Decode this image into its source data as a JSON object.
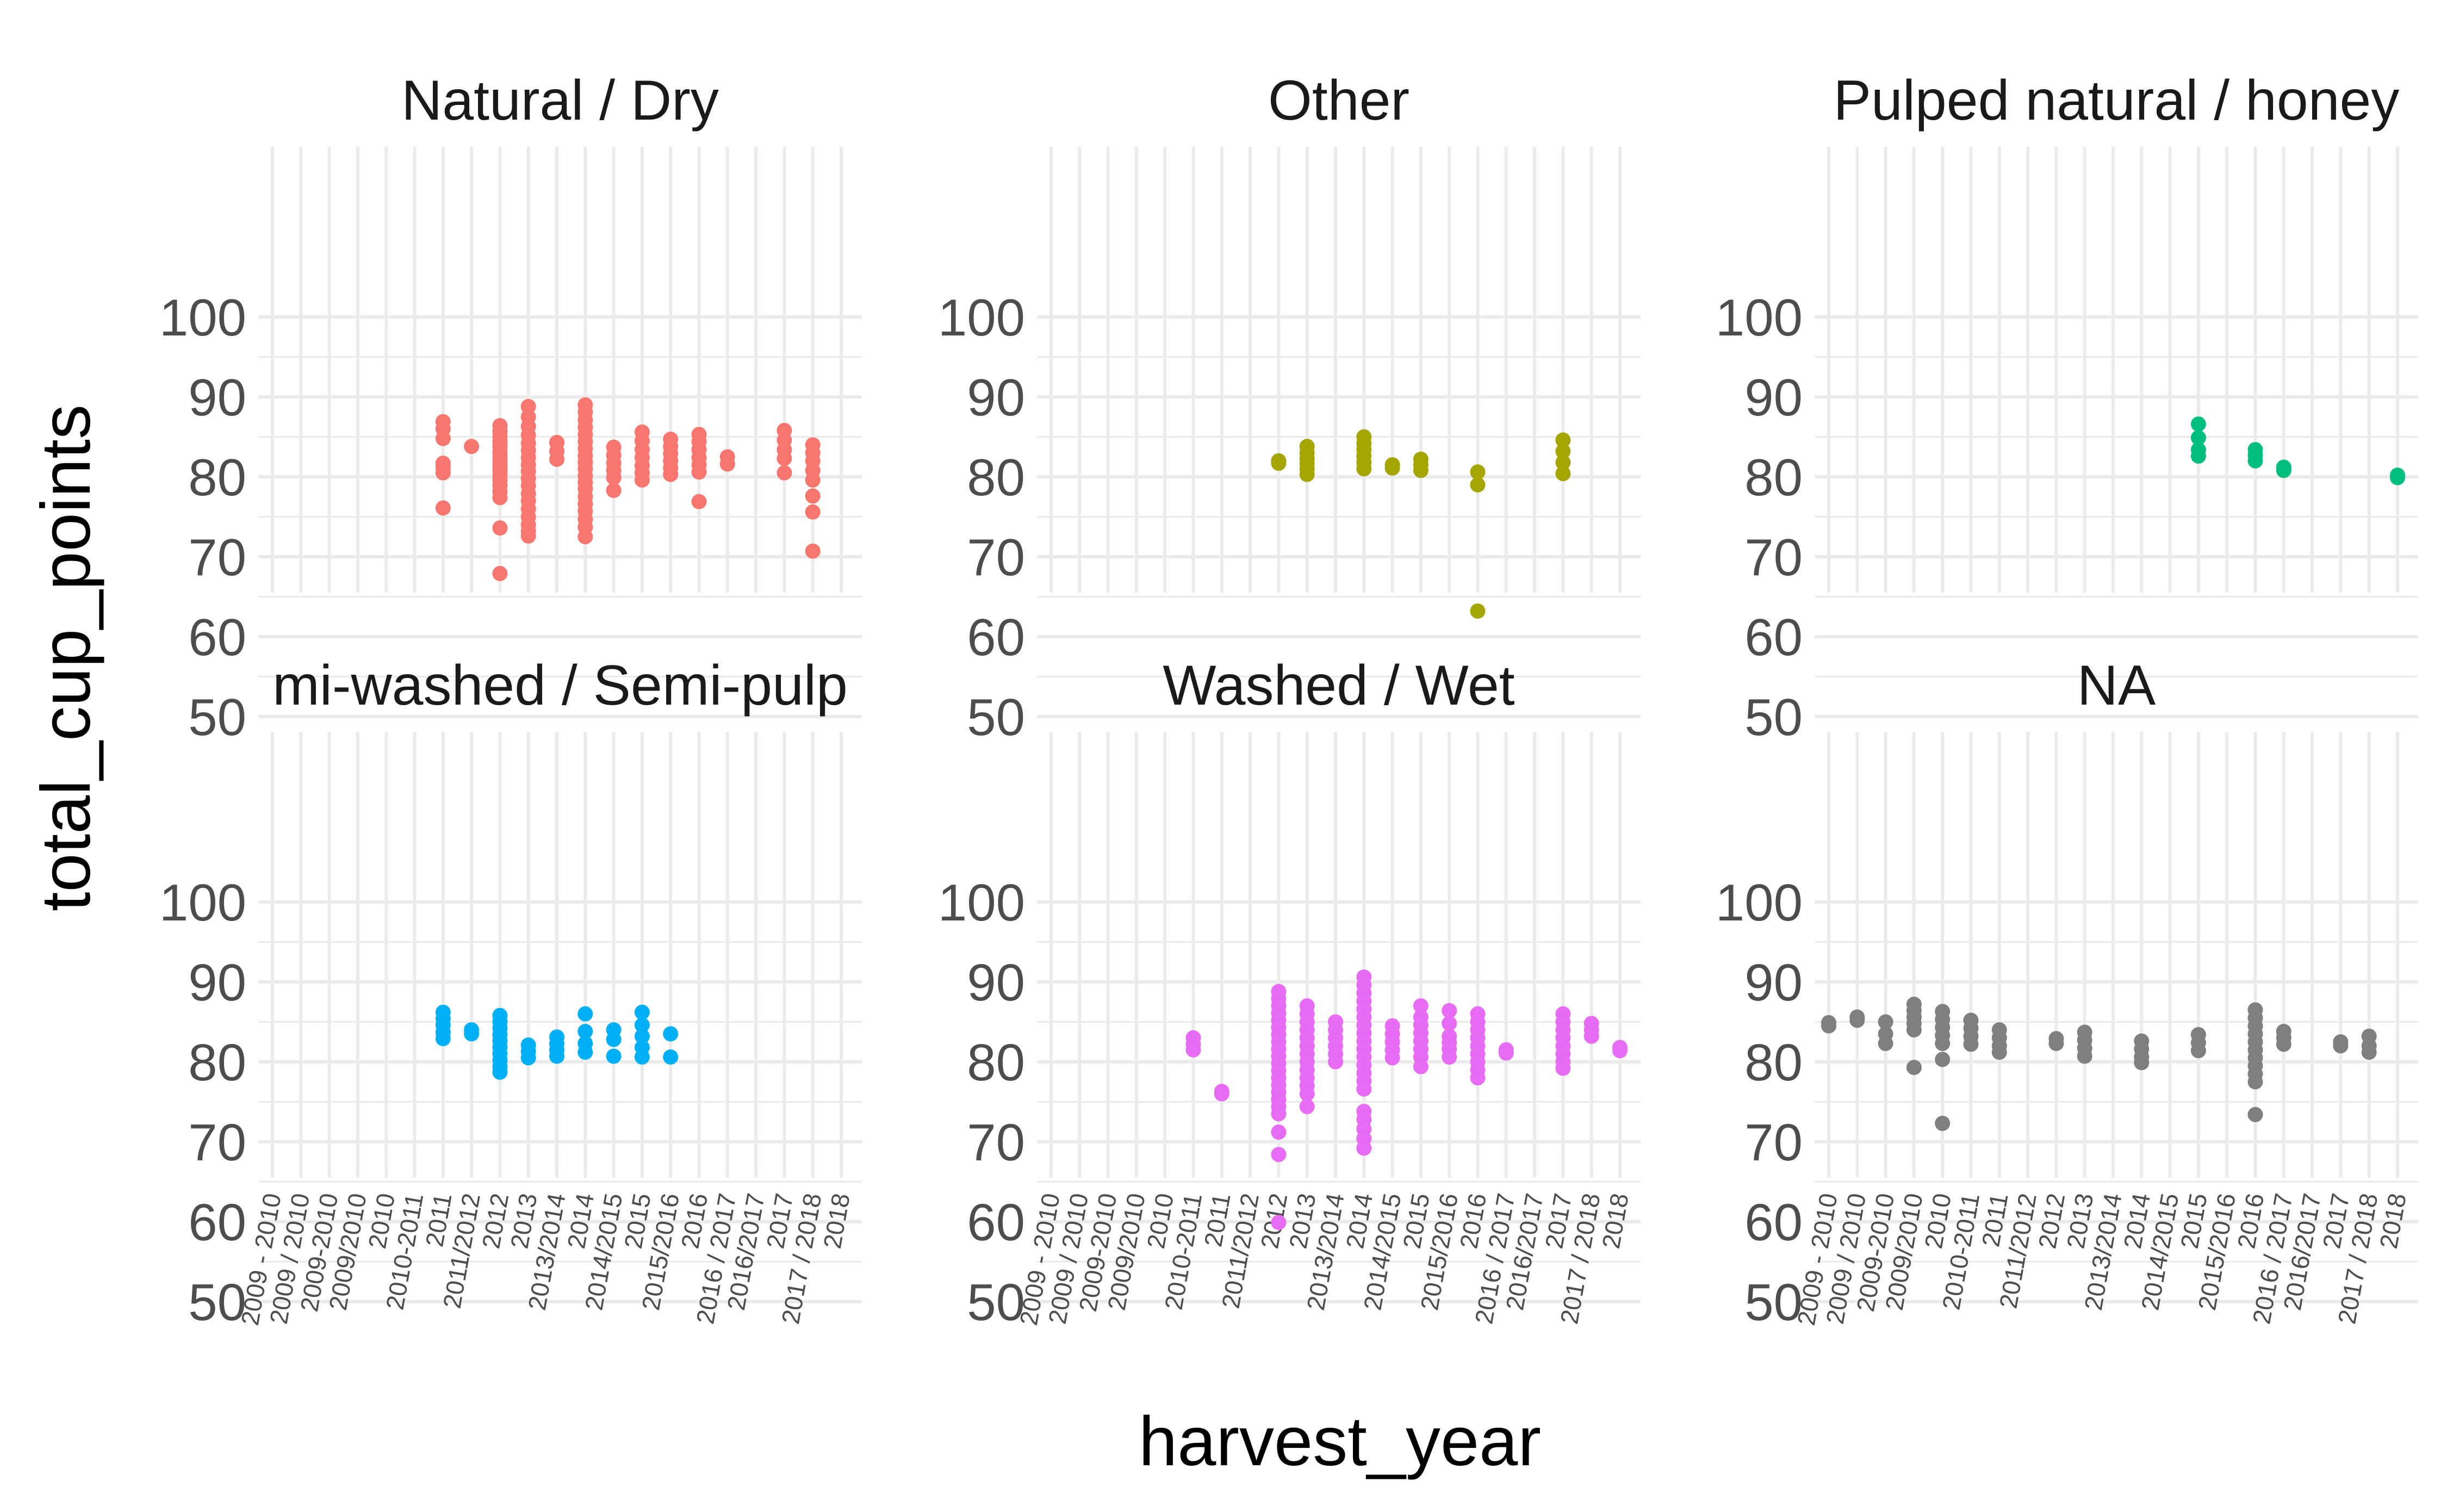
{
  "chart_data": {
    "type": "scatter",
    "xlabel": "harvest_year",
    "ylabel": "total_cup_points",
    "ylim": [
      50,
      100
    ],
    "yticks": [
      50,
      60,
      70,
      80,
      90,
      100
    ],
    "grid": true,
    "legend": "none",
    "x_categories": [
      "2009 - 2010",
      "2009 / 2010",
      "2009-2010",
      "2009/2010",
      "2010",
      "2010-2011",
      "2011",
      "2011/2012",
      "2012",
      "2013",
      "2013/2014",
      "2014",
      "2014/2015",
      "2015",
      "2015/2016",
      "2016",
      "2016 / 2017",
      "2016/2017",
      "2017",
      "2017 / 2018",
      "2018"
    ],
    "panels": [
      {
        "title": "Natural / Dry",
        "color": "#F8766D",
        "points": [
          {
            "x": "2011",
            "y": [
              86.9,
              86.0,
              84.8,
              81.7,
              81.2,
              80.5,
              76.1
            ]
          },
          {
            "x": "2011/2012",
            "y": [
              83.8
            ]
          },
          {
            "x": "2012",
            "y": [
              86.4,
              85.7,
              85.0,
              84.4,
              83.8,
              83.1,
              82.5,
              81.9,
              81.3,
              80.8,
              80.2,
              79.6,
              78.9,
              78.2,
              77.4,
              73.6,
              67.9
            ]
          },
          {
            "x": "2013",
            "y": [
              88.8,
              87.5,
              86.3,
              85.2,
              84.2,
              83.3,
              82.4,
              81.5,
              80.7,
              79.8,
              78.9,
              77.9,
              77.0,
              76.0,
              75.0,
              74.0,
              73.2,
              72.6
            ]
          },
          {
            "x": "2013/2014",
            "y": [
              84.3,
              83.2,
              82.2
            ]
          },
          {
            "x": "2014",
            "y": [
              89.0,
              88.1,
              87.1,
              86.2,
              85.3,
              84.4,
              83.5,
              82.6,
              81.8,
              81.0,
              80.1,
              79.3,
              78.5,
              77.5,
              76.6,
              75.7,
              74.7,
              73.7,
              72.5
            ]
          },
          {
            "x": "2014/2015",
            "y": [
              83.7,
              82.7,
              81.7,
              80.8,
              79.9,
              78.3
            ]
          },
          {
            "x": "2015",
            "y": [
              85.6,
              84.5,
              83.4,
              82.4,
              81.4,
              80.5,
              79.6
            ]
          },
          {
            "x": "2015/2016",
            "y": [
              84.7,
              83.8,
              82.9,
              82.0,
              81.1,
              80.3
            ]
          },
          {
            "x": "2016",
            "y": [
              85.3,
              84.4,
              83.4,
              82.4,
              81.5,
              80.6,
              76.9
            ]
          },
          {
            "x": "2016 / 2017",
            "y": [
              82.5,
              81.6
            ]
          },
          {
            "x": "2017",
            "y": [
              85.8,
              84.6,
              83.4,
              82.3,
              80.5
            ]
          },
          {
            "x": "2017 / 2018",
            "y": [
              84.0,
              83.0,
              82.0,
              80.8,
              79.6,
              77.6,
              75.6,
              70.7
            ]
          }
        ]
      },
      {
        "title": "Other",
        "color": "#A3A500",
        "points": [
          {
            "x": "2012",
            "y": [
              82.0,
              81.7
            ]
          },
          {
            "x": "2013",
            "y": [
              83.8,
              83.0,
              82.3,
              81.7,
              81.0,
              80.3
            ]
          },
          {
            "x": "2014",
            "y": [
              85.0,
              84.2,
              83.4,
              82.6,
              81.8,
              81.0
            ]
          },
          {
            "x": "2014/2015",
            "y": [
              81.5,
              81.1
            ]
          },
          {
            "x": "2015",
            "y": [
              82.2,
              81.5,
              80.8
            ]
          },
          {
            "x": "2016",
            "y": [
              80.6,
              79.0,
              63.2
            ]
          },
          {
            "x": "2017",
            "y": [
              84.6,
              83.2,
              81.8,
              80.4
            ]
          }
        ]
      },
      {
        "title": "Pulped natural / honey",
        "color": "#00BF7D",
        "points": [
          {
            "x": "2015",
            "y": [
              86.6,
              84.9,
              83.4,
              82.6
            ]
          },
          {
            "x": "2016",
            "y": [
              83.4,
              82.7,
              82.0
            ]
          },
          {
            "x": "2016 / 2017",
            "y": [
              81.2,
              80.8
            ]
          },
          {
            "x": "2018",
            "y": [
              80.2,
              79.9
            ]
          }
        ]
      },
      {
        "title": "mi-washed / Semi-pulp",
        "color": "#00B0F6",
        "points": [
          {
            "x": "2011",
            "y": [
              86.2,
              85.4,
              84.6,
              83.7,
              82.9
            ]
          },
          {
            "x": "2011/2012",
            "y": [
              84.0,
              83.5
            ]
          },
          {
            "x": "2012",
            "y": [
              85.8,
              85.0,
              84.2,
              83.4,
              82.6,
              81.8,
              81.0,
              80.2,
              79.4,
              78.7
            ]
          },
          {
            "x": "2013",
            "y": [
              82.1,
              81.3,
              80.5
            ]
          },
          {
            "x": "2013/2014",
            "y": [
              83.1,
              82.3,
              81.5,
              80.7
            ]
          },
          {
            "x": "2014",
            "y": [
              86.0,
              83.8,
              82.3,
              81.2
            ]
          },
          {
            "x": "2014/2015",
            "y": [
              84.0,
              82.8,
              80.7
            ]
          },
          {
            "x": "2015",
            "y": [
              86.2,
              84.6,
              83.2,
              81.8,
              80.6
            ]
          },
          {
            "x": "2015/2016",
            "y": [
              83.5,
              80.6
            ]
          }
        ]
      },
      {
        "title": "Washed / Wet",
        "color": "#E76BF3",
        "points": [
          {
            "x": "2010-2011",
            "y": [
              83.0,
              82.2,
              81.5
            ]
          },
          {
            "x": "2011",
            "y": [
              76.3,
              76.0
            ]
          },
          {
            "x": "2012",
            "y": [
              88.8,
              87.9,
              87.0,
              86.1,
              85.2,
              84.3,
              83.4,
              82.5,
              81.6,
              80.7,
              79.8,
              78.9,
              78.0,
              77.1,
              76.2,
              75.3,
              74.4,
              73.5,
              71.2,
              68.4,
              59.9
            ]
          },
          {
            "x": "2013",
            "y": [
              87.0,
              86.0,
              85.0,
              84.0,
              83.0,
              82.0,
              81.0,
              80.0,
              79.0,
              78.0,
              77.0,
              76.0,
              74.4
            ]
          },
          {
            "x": "2013/2014",
            "y": [
              85.0,
              84.0,
              83.0,
              82.0,
              81.0,
              80.0
            ]
          },
          {
            "x": "2014",
            "y": [
              90.6,
              89.6,
              88.6,
              87.6,
              86.6,
              85.6,
              84.6,
              83.6,
              82.6,
              81.6,
              80.6,
              79.6,
              78.6,
              77.6,
              76.6,
              73.8,
              72.8,
              71.6,
              70.4,
              69.2
            ]
          },
          {
            "x": "2014/2015",
            "y": [
              84.5,
              83.5,
              82.5,
              81.5,
              80.5
            ]
          },
          {
            "x": "2015",
            "y": [
              87.0,
              85.6,
              84.6,
              83.6,
              82.6,
              81.6,
              80.6,
              79.4
            ]
          },
          {
            "x": "2015/2016",
            "y": [
              86.4,
              84.8,
              83.2,
              82.4,
              81.6,
              80.6
            ]
          },
          {
            "x": "2016",
            "y": [
              86.0,
              85.0,
              84.0,
              83.0,
              82.0,
              81.0,
              80.0,
              79.0,
              78.0
            ]
          },
          {
            "x": "2016 / 2017",
            "y": [
              81.5,
              81.1
            ]
          },
          {
            "x": "2017",
            "y": [
              86.0,
              85.0,
              84.0,
              83.0,
              82.0,
              81.0,
              80.0,
              79.2
            ]
          },
          {
            "x": "2017 / 2018",
            "y": [
              84.8,
              84.0,
              83.2
            ]
          },
          {
            "x": "2018",
            "y": [
              81.8,
              81.4
            ]
          }
        ]
      },
      {
        "title": "NA",
        "color": "#7F7F7F",
        "points": [
          {
            "x": "2009 - 2010",
            "y": [
              84.9,
              84.5
            ]
          },
          {
            "x": "2009 / 2010",
            "y": [
              85.6,
              85.2
            ]
          },
          {
            "x": "2009-2010",
            "y": [
              85.0,
              83.5,
              82.3
            ]
          },
          {
            "x": "2009/2010",
            "y": [
              87.2,
              86.4,
              85.6,
              84.8,
              84.0,
              79.3
            ]
          },
          {
            "x": "2010",
            "y": [
              86.3,
              85.3,
              84.3,
              83.3,
              82.3,
              80.3,
              72.3
            ]
          },
          {
            "x": "2010-2011",
            "y": [
              85.2,
              84.2,
              83.2,
              82.2
            ]
          },
          {
            "x": "2011",
            "y": [
              84.0,
              83.0,
              82.0,
              81.2
            ]
          },
          {
            "x": "2012",
            "y": [
              82.9,
              82.3
            ]
          },
          {
            "x": "2013",
            "y": [
              83.7,
              82.7,
              81.7,
              80.7
            ]
          },
          {
            "x": "2014",
            "y": [
              82.6,
              81.6,
              80.6,
              79.9
            ]
          },
          {
            "x": "2015",
            "y": [
              83.4,
              82.4,
              81.4
            ]
          },
          {
            "x": "2016",
            "y": [
              86.5,
              85.5,
              84.5,
              83.5,
              82.5,
              81.5,
              80.5,
              79.5,
              78.5,
              77.5,
              73.4
            ]
          },
          {
            "x": "2016 / 2017",
            "y": [
              83.8,
              83.0,
              82.2
            ]
          },
          {
            "x": "2017",
            "y": [
              82.5,
              82.0
            ]
          },
          {
            "x": "2017 / 2018",
            "y": [
              83.2,
              82.0,
              81.2
            ]
          }
        ]
      }
    ]
  }
}
